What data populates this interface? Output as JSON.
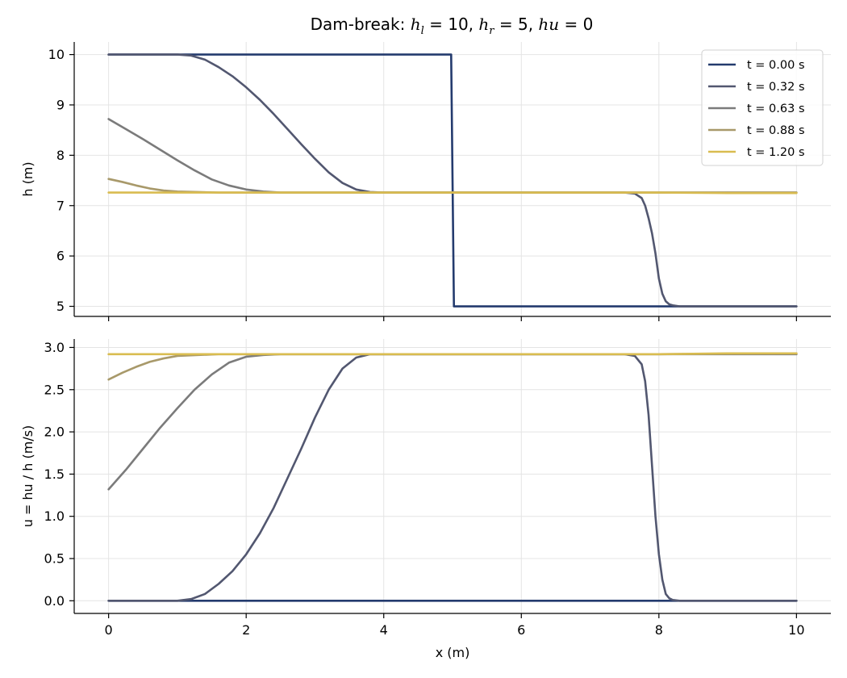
{
  "chart_data": [
    {
      "type": "line",
      "panel": "top",
      "title": "Dam-break: h_l = 10, h_r = 5, hu = 0",
      "title_parts": [
        "Dam-break: ",
        "h",
        "l",
        " = 10, ",
        "h",
        "r",
        " = 5, ",
        "hu",
        " = 0"
      ],
      "xlabel": "",
      "ylabel": "h (m)",
      "xlim": [
        -0.5,
        10.5
      ],
      "ylim": [
        4.8,
        10.25
      ],
      "xticks": [
        0,
        2,
        4,
        6,
        8,
        10
      ],
      "yticks": [
        5,
        6,
        7,
        8,
        9,
        10
      ],
      "grid": true,
      "legend_position": "top-right",
      "series": [
        {
          "name": "t = 0.00 s",
          "color": "#243b6e",
          "x": [
            0,
            4.98,
            5.02,
            10
          ],
          "y": [
            10,
            10,
            5,
            5
          ]
        },
        {
          "name": "t = 0.32 s",
          "color": "#525770",
          "x": [
            0,
            1.0,
            1.2,
            1.4,
            1.6,
            1.8,
            2.0,
            2.2,
            2.4,
            2.6,
            2.8,
            3.0,
            3.2,
            3.4,
            3.6,
            3.8,
            4.0,
            7.5,
            7.65,
            7.75,
            7.8,
            7.85,
            7.9,
            7.95,
            8.0,
            8.05,
            8.1,
            8.15,
            8.2,
            8.3,
            8.5,
            10
          ],
          "y": [
            10,
            10,
            9.98,
            9.9,
            9.75,
            9.57,
            9.35,
            9.1,
            8.82,
            8.52,
            8.22,
            7.93,
            7.66,
            7.45,
            7.32,
            7.27,
            7.26,
            7.26,
            7.24,
            7.15,
            7.0,
            6.75,
            6.45,
            6.05,
            5.55,
            5.25,
            5.1,
            5.04,
            5.02,
            5.0,
            5.0,
            5.0
          ]
        },
        {
          "name": "t = 0.63 s",
          "color": "#7b7b7b",
          "x": [
            0,
            0.25,
            0.5,
            0.75,
            1.0,
            1.25,
            1.5,
            1.75,
            2.0,
            2.25,
            2.5,
            3.0,
            4.0,
            6.0,
            8.0,
            10
          ],
          "y": [
            8.72,
            8.52,
            8.32,
            8.11,
            7.9,
            7.7,
            7.52,
            7.4,
            7.32,
            7.28,
            7.26,
            7.26,
            7.26,
            7.26,
            7.26,
            7.26
          ]
        },
        {
          "name": "t = 0.88 s",
          "color": "#a8996a",
          "x": [
            0,
            0.2,
            0.4,
            0.6,
            0.8,
            1.0,
            1.3,
            1.6,
            2.0,
            4.0,
            6.0,
            8.0,
            10
          ],
          "y": [
            7.53,
            7.47,
            7.4,
            7.34,
            7.3,
            7.28,
            7.27,
            7.26,
            7.26,
            7.26,
            7.26,
            7.26,
            7.26
          ]
        },
        {
          "name": "t = 1.20 s",
          "color": "#d9bc50",
          "x": [
            0,
            2,
            4,
            6,
            8,
            9,
            10
          ],
          "y": [
            7.26,
            7.26,
            7.26,
            7.26,
            7.26,
            7.25,
            7.25
          ]
        }
      ]
    },
    {
      "type": "line",
      "panel": "bottom",
      "title": "",
      "xlabel": "x (m)",
      "ylabel": "u = hu / h (m/s)",
      "xlim": [
        -0.5,
        10.5
      ],
      "ylim": [
        -0.15,
        3.1
      ],
      "xticks": [
        0,
        2,
        4,
        6,
        8,
        10
      ],
      "yticks": [
        0.0,
        0.5,
        1.0,
        1.5,
        2.0,
        2.5,
        3.0
      ],
      "ytick_labels": [
        "0.0",
        "0.5",
        "1.0",
        "1.5",
        "2.0",
        "2.5",
        "3.0"
      ],
      "grid": true,
      "series": [
        {
          "name": "t = 0.00 s",
          "color": "#243b6e",
          "x": [
            0,
            10
          ],
          "y": [
            0,
            0
          ]
        },
        {
          "name": "t = 0.32 s",
          "color": "#525770",
          "x": [
            0,
            1.0,
            1.2,
            1.4,
            1.6,
            1.8,
            2.0,
            2.2,
            2.4,
            2.6,
            2.8,
            3.0,
            3.2,
            3.4,
            3.6,
            3.8,
            4.0,
            7.5,
            7.65,
            7.75,
            7.8,
            7.85,
            7.9,
            7.95,
            8.0,
            8.05,
            8.1,
            8.15,
            8.2,
            8.3,
            8.5,
            10
          ],
          "y": [
            0,
            0,
            0.02,
            0.08,
            0.2,
            0.35,
            0.55,
            0.8,
            1.1,
            1.45,
            1.8,
            2.17,
            2.5,
            2.75,
            2.88,
            2.92,
            2.92,
            2.92,
            2.9,
            2.8,
            2.6,
            2.2,
            1.6,
            1.0,
            0.55,
            0.25,
            0.08,
            0.03,
            0.01,
            0,
            0,
            0
          ]
        },
        {
          "name": "t = 0.63 s",
          "color": "#7b7b7b",
          "x": [
            0,
            0.25,
            0.5,
            0.75,
            1.0,
            1.25,
            1.5,
            1.75,
            2.0,
            2.25,
            2.5,
            3.0,
            4.0,
            6.0,
            8.0,
            10
          ],
          "y": [
            1.32,
            1.55,
            1.8,
            2.05,
            2.28,
            2.5,
            2.68,
            2.82,
            2.89,
            2.91,
            2.92,
            2.92,
            2.92,
            2.92,
            2.92,
            2.92
          ]
        },
        {
          "name": "t = 0.88 s",
          "color": "#a8996a",
          "x": [
            0,
            0.2,
            0.4,
            0.6,
            0.8,
            1.0,
            1.3,
            1.6,
            2.0,
            4.0,
            6.0,
            8.0,
            10
          ],
          "y": [
            2.62,
            2.7,
            2.77,
            2.83,
            2.87,
            2.9,
            2.91,
            2.92,
            2.92,
            2.92,
            2.92,
            2.92,
            2.93
          ]
        },
        {
          "name": "t = 1.20 s",
          "color": "#d9bc50",
          "x": [
            0,
            2,
            4,
            6,
            8,
            9,
            10
          ],
          "y": [
            2.92,
            2.92,
            2.92,
            2.92,
            2.92,
            2.93,
            2.93
          ]
        }
      ]
    }
  ]
}
